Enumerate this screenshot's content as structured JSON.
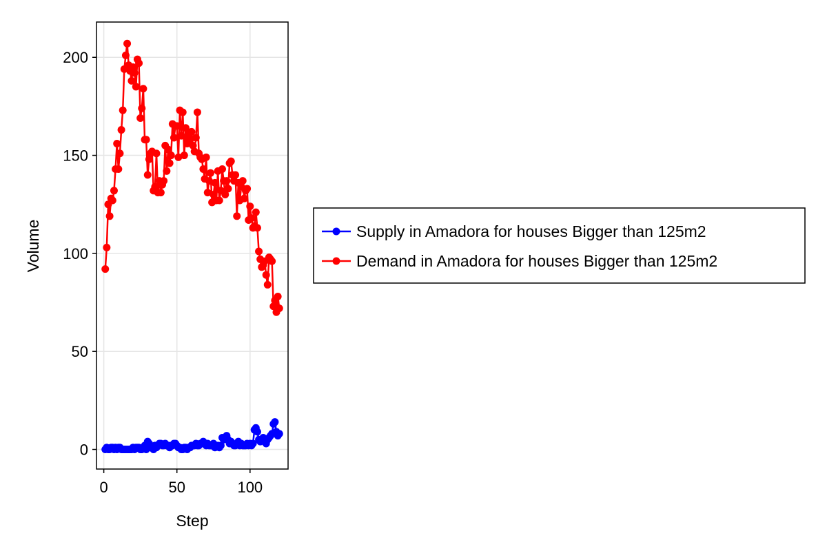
{
  "chart_data": {
    "type": "line",
    "title": "",
    "xlabel": "Step",
    "ylabel": "Volume",
    "xlim": [
      -5,
      126
    ],
    "ylim": [
      -10,
      218
    ],
    "xticks": [
      0,
      50,
      100
    ],
    "yticks": [
      0,
      50,
      100,
      150,
      200
    ],
    "grid": true,
    "legend_position": "right",
    "series": [
      {
        "name": "Supply in Amadora for houses Bigger than 125m2",
        "color": "#0000ff",
        "x": [
          1,
          2,
          3,
          4,
          5,
          6,
          7,
          8,
          9,
          10,
          11,
          12,
          13,
          14,
          15,
          16,
          17,
          18,
          19,
          20,
          21,
          22,
          23,
          24,
          25,
          26,
          27,
          28,
          29,
          30,
          31,
          32,
          33,
          34,
          35,
          36,
          37,
          38,
          39,
          40,
          41,
          42,
          43,
          44,
          45,
          46,
          47,
          48,
          49,
          50,
          51,
          52,
          53,
          54,
          55,
          56,
          57,
          58,
          59,
          60,
          61,
          62,
          63,
          64,
          65,
          66,
          67,
          68,
          69,
          70,
          71,
          72,
          73,
          74,
          75,
          76,
          77,
          78,
          79,
          80,
          81,
          82,
          83,
          84,
          85,
          86,
          87,
          88,
          89,
          90,
          91,
          92,
          93,
          94,
          95,
          96,
          97,
          98,
          99,
          100,
          101,
          102,
          103,
          104,
          105,
          106,
          107,
          108,
          109,
          110,
          111,
          112,
          113,
          114,
          115,
          116,
          117,
          118,
          119,
          120
        ],
        "values": [
          0,
          1,
          0,
          0,
          1,
          1,
          0,
          1,
          0,
          1,
          1,
          0,
          0,
          0,
          0,
          0,
          0,
          0,
          0,
          1,
          0,
          1,
          1,
          1,
          0,
          0,
          1,
          2,
          0,
          4,
          3,
          1,
          1,
          0,
          2,
          1,
          2,
          3,
          3,
          2,
          2,
          3,
          2,
          2,
          1,
          2,
          2,
          3,
          3,
          2,
          1,
          1,
          0,
          0,
          1,
          1,
          0,
          1,
          1,
          2,
          2,
          2,
          3,
          2,
          2,
          3,
          3,
          4,
          3,
          2,
          3,
          2,
          2,
          2,
          3,
          1,
          2,
          2,
          1,
          2,
          6,
          5,
          6,
          7,
          5,
          3,
          4,
          3,
          2,
          2,
          3,
          4,
          2,
          3,
          2,
          2,
          2,
          3,
          2,
          3,
          2,
          3,
          10,
          11,
          9,
          5,
          4,
          5,
          6,
          4,
          3,
          5,
          6,
          7,
          8,
          13,
          14,
          9,
          7,
          8
        ]
      },
      {
        "name": "Demand in Amadora for houses Bigger than 125m2",
        "color": "#ff0000",
        "x": [
          1,
          2,
          3,
          4,
          5,
          6,
          7,
          8,
          9,
          10,
          11,
          12,
          13,
          14,
          15,
          16,
          17,
          18,
          19,
          20,
          21,
          22,
          23,
          24,
          25,
          26,
          27,
          28,
          29,
          30,
          31,
          32,
          33,
          34,
          35,
          36,
          37,
          38,
          39,
          40,
          41,
          42,
          43,
          44,
          45,
          46,
          47,
          48,
          49,
          50,
          51,
          52,
          53,
          54,
          55,
          56,
          57,
          58,
          59,
          60,
          61,
          62,
          63,
          64,
          65,
          66,
          67,
          68,
          69,
          70,
          71,
          72,
          73,
          74,
          75,
          76,
          77,
          78,
          79,
          80,
          81,
          82,
          83,
          84,
          85,
          86,
          87,
          88,
          89,
          90,
          91,
          92,
          93,
          94,
          95,
          96,
          97,
          98,
          99,
          100,
          101,
          102,
          103,
          104,
          105,
          106,
          107,
          108,
          109,
          110,
          111,
          112,
          113,
          114,
          115,
          116,
          117,
          118,
          119,
          120
        ],
        "values": [
          92,
          103,
          125,
          119,
          128,
          127,
          132,
          143,
          156,
          143,
          151,
          163,
          173,
          194,
          201,
          207,
          196,
          193,
          188,
          195,
          192,
          185,
          199,
          197,
          169,
          174,
          184,
          158,
          158,
          140,
          148,
          151,
          152,
          132,
          134,
          151,
          131,
          137,
          131,
          135,
          137,
          155,
          142,
          153,
          146,
          150,
          166,
          159,
          165,
          165,
          149,
          173,
          160,
          172,
          150,
          164,
          156,
          161,
          158,
          162,
          155,
          152,
          159,
          172,
          151,
          149,
          148,
          143,
          138,
          149,
          131,
          137,
          141,
          126,
          130,
          136,
          127,
          142,
          127,
          132,
          143,
          137,
          130,
          137,
          133,
          146,
          147,
          140,
          137,
          140,
          119,
          136,
          127,
          134,
          137,
          128,
          132,
          133,
          117,
          124,
          118,
          113,
          114,
          121,
          113,
          101,
          97,
          93,
          94,
          96,
          89,
          84,
          98,
          97,
          96,
          73,
          76,
          70,
          78,
          72
        ]
      }
    ]
  }
}
